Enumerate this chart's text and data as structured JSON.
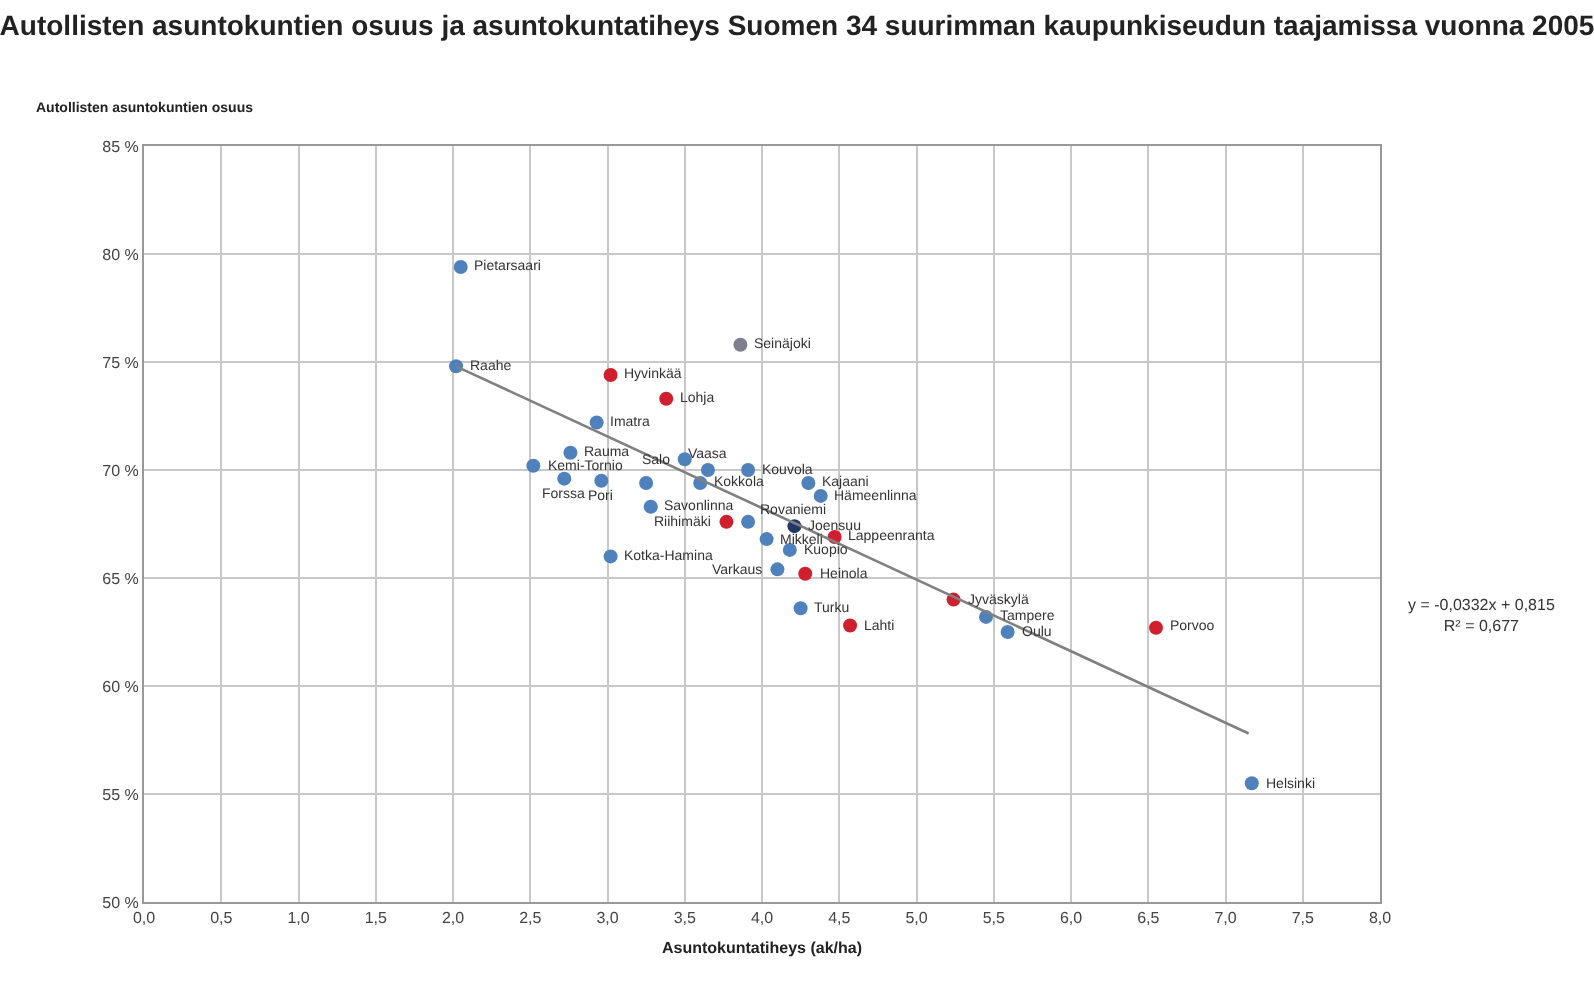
{
  "chart_data": {
    "type": "scatter",
    "title": "Autollisten asuntokuntien osuus ja asuntokuntatiheys Suomen 34 suurimman kaupunkiseudun taajamissa vuonna 2005",
    "xlabel": "Asuntokuntatiheys (ak/ha)",
    "ylabel": "Autollisten asuntokuntien osuus",
    "xlim": [
      0,
      8
    ],
    "ylim": [
      50,
      85
    ],
    "xticks": [
      {
        "value": 0,
        "label": "0,0"
      },
      {
        "value": 0.5,
        "label": "0,5"
      },
      {
        "value": 1,
        "label": "1,0"
      },
      {
        "value": 1.5,
        "label": "1,5"
      },
      {
        "value": 2,
        "label": "2,0"
      },
      {
        "value": 2.5,
        "label": "2,5"
      },
      {
        "value": 3,
        "label": "3,0"
      },
      {
        "value": 3.5,
        "label": "3,5"
      },
      {
        "value": 4,
        "label": "4,0"
      },
      {
        "value": 4.5,
        "label": "4,5"
      },
      {
        "value": 5,
        "label": "5,0"
      },
      {
        "value": 5.5,
        "label": "5,5"
      },
      {
        "value": 6,
        "label": "6,0"
      },
      {
        "value": 6.5,
        "label": "6,5"
      },
      {
        "value": 7,
        "label": "7,0"
      },
      {
        "value": 7.5,
        "label": "7,5"
      },
      {
        "value": 8,
        "label": "8,0"
      }
    ],
    "yticks": [
      {
        "value": 50,
        "label": "50 %"
      },
      {
        "value": 55,
        "label": "55 %"
      },
      {
        "value": 60,
        "label": "60 %"
      },
      {
        "value": 65,
        "label": "65 %"
      },
      {
        "value": 70,
        "label": "70 %"
      },
      {
        "value": 75,
        "label": "75 %"
      },
      {
        "value": 80,
        "label": "80 %"
      },
      {
        "value": 85,
        "label": "85 %"
      }
    ],
    "grid": true,
    "series": [
      {
        "marker": "circle",
        "x": [
          2.05,
          2.02,
          3.86,
          3.02,
          3.38,
          2.93,
          2.76,
          2.52,
          2.72,
          2.96,
          3.25,
          3.28,
          3.5,
          3.65,
          3.6,
          3.91,
          4.3,
          4.38,
          3.77,
          3.91,
          4.21,
          4.47,
          4.03,
          4.18,
          4.1,
          4.28,
          4.25,
          4.57,
          5.24,
          5.45,
          5.59,
          6.55,
          7.17,
          3.02
        ],
        "values": [
          79.4,
          74.8,
          75.8,
          74.4,
          73.3,
          72.2,
          70.8,
          70.2,
          69.6,
          69.5,
          69.4,
          68.3,
          70.5,
          70.0,
          69.4,
          70.0,
          69.4,
          68.8,
          67.6,
          67.6,
          67.4,
          66.9,
          66.8,
          66.3,
          65.4,
          65.2,
          63.6,
          62.8,
          64.0,
          63.2,
          62.5,
          62.7,
          55.5,
          66.0
        ],
        "colors": [
          "#4f81bd",
          "#4f81bd",
          "#7f7f8f",
          "#d0202e",
          "#d0202e",
          "#4f81bd",
          "#4f81bd",
          "#4f81bd",
          "#4f81bd",
          "#4f81bd",
          "#4f81bd",
          "#4f81bd",
          "#4f81bd",
          "#4f81bd",
          "#4f81bd",
          "#4f81bd",
          "#4f81bd",
          "#4f81bd",
          "#d0202e",
          "#4f81bd",
          "#1f3864",
          "#d0202e",
          "#4f81bd",
          "#4f81bd",
          "#4f81bd",
          "#d0202e",
          "#4f81bd",
          "#d0202e",
          "#d0202e",
          "#4f81bd",
          "#4f81bd",
          "#d0202e",
          "#4f81bd",
          "#4f81bd"
        ]
      },
      {
        "type": "line",
        "x": [
          2.02,
          7.15
        ],
        "values": [
          74.8,
          57.8
        ],
        "color": "#808080"
      }
    ],
    "annotations": [
      {
        "text": "Pietarsaari",
        "x": 2.05,
        "y": 79.4
      },
      {
        "text": "Raahe",
        "x": 2.02,
        "y": 74.8
      },
      {
        "text": "Seinäjoki",
        "x": 3.86,
        "y": 75.8
      },
      {
        "text": "Hyvinkää",
        "x": 3.02,
        "y": 74.4
      },
      {
        "text": "Lohja",
        "x": 3.38,
        "y": 73.3
      },
      {
        "text": "Imatra",
        "x": 2.93,
        "y": 72.2
      },
      {
        "text": "Rauma",
        "x": 2.76,
        "y": 70.8
      },
      {
        "text": "Kemi-Tornio",
        "x": 2.52,
        "y": 70.2
      },
      {
        "text": "Forssa",
        "x": 2.72,
        "y": 69.6
      },
      {
        "text": "Pori",
        "x": 2.96,
        "y": 69.5
      },
      {
        "text": "Savonlinna",
        "x": 3.28,
        "y": 68.3
      },
      {
        "text": "Salo",
        "x": 3.5,
        "y": 70.5
      },
      {
        "text": "Vaasa",
        "x": 3.65,
        "y": 70.0
      },
      {
        "text": "Kokkola",
        "x": 3.6,
        "y": 69.4
      },
      {
        "text": "Kouvola",
        "x": 3.91,
        "y": 70.0
      },
      {
        "text": "Kajaani",
        "x": 4.3,
        "y": 69.4
      },
      {
        "text": "Hämeenlinna",
        "x": 4.38,
        "y": 68.8
      },
      {
        "text": "Riihimäki",
        "x": 3.77,
        "y": 67.6
      },
      {
        "text": "Rovaniemi",
        "x": 3.91,
        "y": 67.6
      },
      {
        "text": "Joensuu",
        "x": 4.21,
        "y": 67.4
      },
      {
        "text": "Lappeenranta",
        "x": 4.47,
        "y": 66.9
      },
      {
        "text": "Mikkeli",
        "x": 4.03,
        "y": 66.8
      },
      {
        "text": "Kuopio",
        "x": 4.18,
        "y": 66.3
      },
      {
        "text": "Varkaus",
        "x": 4.1,
        "y": 65.4
      },
      {
        "text": "Heinola",
        "x": 4.28,
        "y": 65.2
      },
      {
        "text": "Turku",
        "x": 4.25,
        "y": 63.6
      },
      {
        "text": "Lahti",
        "x": 4.57,
        "y": 62.8
      },
      {
        "text": "Jyväskylä",
        "x": 5.24,
        "y": 64.0
      },
      {
        "text": "Tampere",
        "x": 5.45,
        "y": 63.2
      },
      {
        "text": "Oulu",
        "x": 5.59,
        "y": 62.5
      },
      {
        "text": "Porvoo",
        "x": 6.55,
        "y": 62.7
      },
      {
        "text": "Helsinki",
        "x": 7.17,
        "y": 55.5
      },
      {
        "text": "Kotka-Hamina",
        "x": 3.02,
        "y": 66.0
      },
      "y = -0,0332x + 0,815\nR² = 0,677"
    ]
  }
}
